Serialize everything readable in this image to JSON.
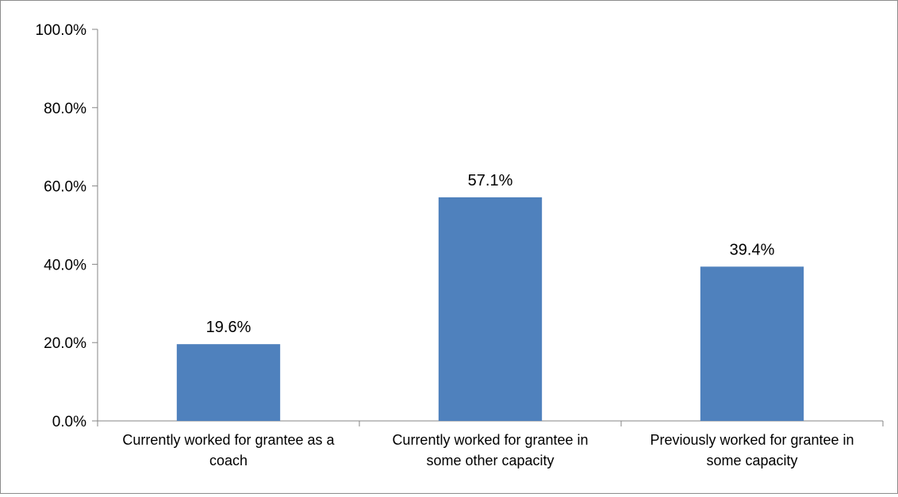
{
  "chart_data": {
    "type": "bar",
    "title": "",
    "xlabel": "",
    "ylabel": "",
    "categories": [
      [
        "Currently worked for grantee as a",
        "coach"
      ],
      [
        "Currently worked for grantee in",
        "some other capacity"
      ],
      [
        "Previously worked for grantee in",
        "some capacity"
      ]
    ],
    "values": [
      19.6,
      57.1,
      39.4
    ],
    "data_labels": [
      "19.6%",
      "57.1%",
      "39.4%"
    ],
    "ylim": [
      0,
      100
    ],
    "yticks": [
      0,
      20,
      40,
      60,
      80,
      100
    ],
    "ytick_labels": [
      "0.0%",
      "20.0%",
      "40.0%",
      "60.0%",
      "80.0%",
      "100.0%"
    ],
    "grid": false,
    "legend": "none",
    "bar_color": "#4f81bd",
    "axis_color": "#868686"
  }
}
